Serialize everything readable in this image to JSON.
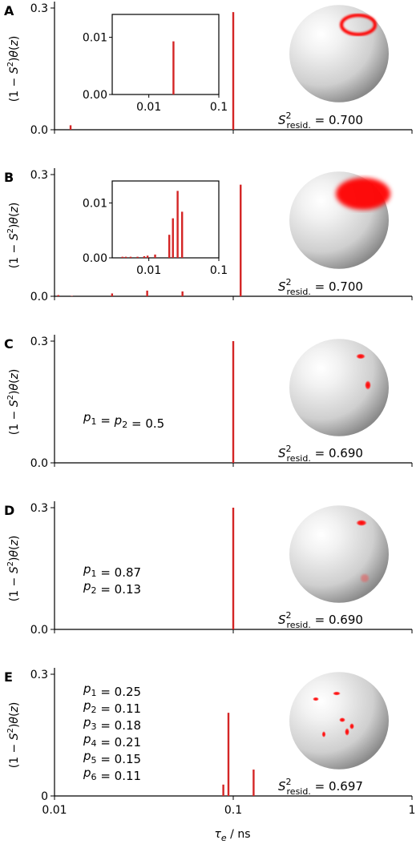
{
  "figure": {
    "xlabel": "τ_e / ns",
    "x_ticks": [
      {
        "value": 0.01,
        "label": "0.01"
      },
      {
        "value": 0.1,
        "label": "0.1"
      },
      {
        "value": 1,
        "label": "1"
      }
    ],
    "ylabel": "(1 − S²)θ(z)",
    "colors": {
      "bar": "#d42525",
      "sphere_spot": "#ff0000",
      "sphere_base": "#d8d8d8"
    }
  },
  "chart_data": [
    {
      "type": "bar",
      "panel": "A",
      "ylim": [
        0,
        0.3
      ],
      "y_ticks": [
        {
          "value": 0,
          "label": "0.0"
        },
        {
          "value": 0.3,
          "label": "0.3"
        }
      ],
      "xscale": "log",
      "xlim": [
        0.01,
        1
      ],
      "bars": [
        {
          "x": 0.0123,
          "y": 0.011
        },
        {
          "x": 0.1,
          "y": 0.29
        }
      ],
      "inset": {
        "xlim": [
          0.003,
          0.1
        ],
        "ylim": [
          0,
          0.014
        ],
        "x_ticks": [
          {
            "value": 0.01,
            "label": "0.01"
          },
          {
            "value": 0.1,
            "label": "0.1"
          }
        ],
        "y_ticks": [
          {
            "value": 0,
            "label": "0.00"
          },
          {
            "value": 0.01,
            "label": "0.01"
          }
        ],
        "bars": [
          {
            "x": 0.0225,
            "y": 0.0093
          }
        ]
      },
      "residual_label": {
        "sym": "S",
        "sup": "2",
        "sub": "resid.",
        "value": "0.700"
      },
      "sphere": {
        "pattern": "ring"
      }
    },
    {
      "type": "bar",
      "panel": "B",
      "ylim": [
        0,
        0.3
      ],
      "y_ticks": [
        {
          "value": 0,
          "label": "0.0"
        },
        {
          "value": 0.3,
          "label": "0.3"
        }
      ],
      "xscale": "log",
      "xlim": [
        0.01,
        1
      ],
      "bars": [
        {
          "x": 0.0105,
          "y": 0.003
        },
        {
          "x": 0.0125,
          "y": 0.001
        },
        {
          "x": 0.021,
          "y": 0.007
        },
        {
          "x": 0.033,
          "y": 0.014
        },
        {
          "x": 0.052,
          "y": 0.012
        },
        {
          "x": 0.11,
          "y": 0.275
        }
      ],
      "inset": {
        "xlim": [
          0.003,
          0.1
        ],
        "ylim": [
          0,
          0.014
        ],
        "x_ticks": [
          {
            "value": 0.01,
            "label": "0.01"
          },
          {
            "value": 0.1,
            "label": "0.1"
          }
        ],
        "y_ticks": [
          {
            "value": 0,
            "label": "0.00"
          },
          {
            "value": 0.01,
            "label": "0.01"
          }
        ],
        "bars": [
          {
            "x": 0.0042,
            "y": 0.0002
          },
          {
            "x": 0.0047,
            "y": 0.0002
          },
          {
            "x": 0.0055,
            "y": 0.0002
          },
          {
            "x": 0.0069,
            "y": 0.0002
          },
          {
            "x": 0.0086,
            "y": 0.0003
          },
          {
            "x": 0.0096,
            "y": 0.0004
          },
          {
            "x": 0.0123,
            "y": 0.0006
          },
          {
            "x": 0.0196,
            "y": 0.0042
          },
          {
            "x": 0.0221,
            "y": 0.0072
          },
          {
            "x": 0.0258,
            "y": 0.0122
          },
          {
            "x": 0.0299,
            "y": 0.0084
          }
        ]
      },
      "residual_label": {
        "sym": "S",
        "sup": "2",
        "sub": "resid.",
        "value": "0.700"
      },
      "sphere": {
        "pattern": "cap"
      }
    },
    {
      "type": "bar",
      "panel": "C",
      "ylim": [
        0,
        0.3
      ],
      "y_ticks": [
        {
          "value": 0,
          "label": "0.0"
        },
        {
          "value": 0.3,
          "label": "0.3"
        }
      ],
      "xscale": "log",
      "xlim": [
        0.01,
        1
      ],
      "bars": [
        {
          "x": 0.1,
          "y": 0.3
        }
      ],
      "annotations": [
        "p₁ = p₂ = 0.5"
      ],
      "residual_label": {
        "sym": "S",
        "sup": "2",
        "sub": "resid.",
        "value": "0.690"
      },
      "sphere": {
        "pattern": "two-spots-equal"
      }
    },
    {
      "type": "bar",
      "panel": "D",
      "ylim": [
        0,
        0.3
      ],
      "y_ticks": [
        {
          "value": 0,
          "label": "0.0"
        },
        {
          "value": 0.3,
          "label": "0.3"
        }
      ],
      "xscale": "log",
      "xlim": [
        0.01,
        1
      ],
      "bars": [
        {
          "x": 0.1,
          "y": 0.3
        }
      ],
      "annotations": [
        "p₁ = 0.87",
        "p₂ = 0.13"
      ],
      "residual_label": {
        "sym": "S",
        "sup": "2",
        "sub": "resid.",
        "value": "0.690"
      },
      "sphere": {
        "pattern": "two-spots-unequal"
      }
    },
    {
      "type": "bar",
      "panel": "E",
      "ylim": [
        0,
        0.3
      ],
      "y_ticks": [
        {
          "value": 0,
          "label": "0"
        },
        {
          "value": 0.3,
          "label": "0.3"
        }
      ],
      "xscale": "log",
      "xlim": [
        0.01,
        1
      ],
      "bars": [
        {
          "x": 0.088,
          "y": 0.028
        },
        {
          "x": 0.094,
          "y": 0.205
        },
        {
          "x": 0.13,
          "y": 0.065
        }
      ],
      "annotations": [
        "p₁ = 0.25",
        "p₂ = 0.11",
        "p₃ = 0.18",
        "p₄ = 0.21",
        "p₅ = 0.15",
        "p₆ = 0.11"
      ],
      "residual_label": {
        "sym": "S",
        "sup": "2",
        "sub": "resid.",
        "value": "0.697"
      },
      "sphere": {
        "pattern": "six-spots"
      }
    }
  ]
}
